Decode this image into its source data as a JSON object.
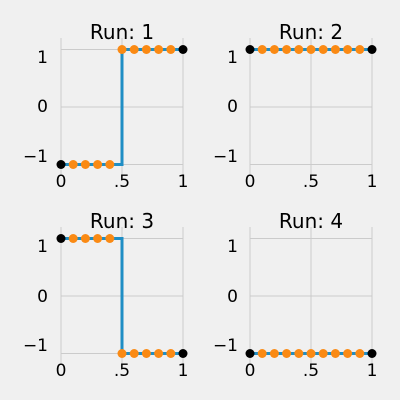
{
  "chart_data": [
    {
      "type": "line",
      "title": "Run: 1",
      "ylim": [
        -1.2,
        1.2
      ],
      "x_ticks": [
        "0",
        ".5",
        "1"
      ],
      "y_ticks": [
        "1",
        "0",
        "−1"
      ],
      "series": [
        {
          "role": "line",
          "x": [
            0.0,
            0.5,
            0.5,
            1.0
          ],
          "y": [
            -1,
            -1,
            1,
            1
          ],
          "color": "#1f8ec5"
        },
        {
          "role": "points",
          "x": [
            0.1,
            0.2,
            0.3,
            0.4,
            0.5,
            0.6,
            0.7,
            0.8,
            0.9
          ],
          "y": [
            -1,
            -1,
            -1,
            -1,
            1,
            1,
            1,
            1,
            1
          ],
          "color": "#fa8a14"
        },
        {
          "role": "endpoints",
          "x": [
            0.0,
            1.0
          ],
          "y": [
            -1,
            1
          ],
          "color": "#000000"
        }
      ]
    },
    {
      "type": "line",
      "title": "Run: 2",
      "ylim": [
        -1.2,
        1.2
      ],
      "x_ticks": [
        "0",
        ".5",
        "1"
      ],
      "y_ticks": [
        "1",
        "0",
        "−1"
      ],
      "series": [
        {
          "role": "line",
          "x": [
            0.0,
            1.0
          ],
          "y": [
            1,
            1
          ],
          "color": "#1f8ec5"
        },
        {
          "role": "points",
          "x": [
            0.1,
            0.2,
            0.3,
            0.4,
            0.5,
            0.6,
            0.7,
            0.8,
            0.9
          ],
          "y": [
            1,
            1,
            1,
            1,
            1,
            1,
            1,
            1,
            1
          ],
          "color": "#fa8a14"
        },
        {
          "role": "endpoints",
          "x": [
            0.0,
            1.0
          ],
          "y": [
            1,
            1
          ],
          "color": "#000000"
        }
      ]
    },
    {
      "type": "line",
      "title": "Run: 3",
      "ylim": [
        -1.2,
        1.2
      ],
      "x_ticks": [
        "0",
        ".5",
        "1"
      ],
      "y_ticks": [
        "1",
        "0",
        "−1"
      ],
      "series": [
        {
          "role": "line",
          "x": [
            0.0,
            0.5,
            0.5,
            1.0
          ],
          "y": [
            1,
            1,
            -1,
            -1
          ],
          "color": "#1f8ec5"
        },
        {
          "role": "points",
          "x": [
            0.1,
            0.2,
            0.3,
            0.4,
            0.5,
            0.6,
            0.7,
            0.8,
            0.9
          ],
          "y": [
            1,
            1,
            1,
            1,
            -1,
            -1,
            -1,
            -1,
            -1
          ],
          "color": "#fa8a14"
        },
        {
          "role": "endpoints",
          "x": [
            0.0,
            1.0
          ],
          "y": [
            1,
            -1
          ],
          "color": "#000000"
        }
      ]
    },
    {
      "type": "line",
      "title": "Run: 4",
      "ylim": [
        -1.2,
        1.2
      ],
      "x_ticks": [
        "0",
        ".5",
        "1"
      ],
      "y_ticks": [
        "1",
        "0",
        "−1"
      ],
      "series": [
        {
          "role": "line",
          "x": [
            0.0,
            1.0
          ],
          "y": [
            -1,
            -1
          ],
          "color": "#1f8ec5"
        },
        {
          "role": "points",
          "x": [
            0.1,
            0.2,
            0.3,
            0.4,
            0.5,
            0.6,
            0.7,
            0.8,
            0.9
          ],
          "y": [
            -1,
            -1,
            -1,
            -1,
            -1,
            -1,
            -1,
            -1,
            -1
          ],
          "color": "#fa8a14"
        },
        {
          "role": "endpoints",
          "x": [
            0.0,
            1.0
          ],
          "y": [
            -1,
            -1
          ],
          "color": "#000000"
        }
      ]
    }
  ]
}
